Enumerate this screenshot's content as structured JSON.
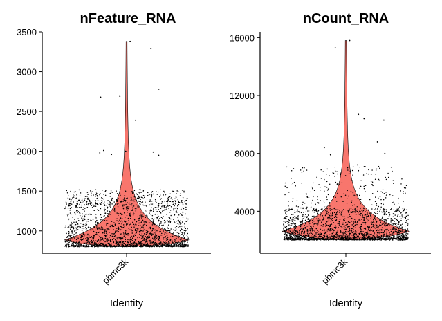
{
  "chart_data": [
    {
      "type": "violin",
      "title": "nFeature_RNA",
      "xlabel": "Identity",
      "ylabel": "",
      "categories": [
        "pbmc3k"
      ],
      "yticks": [
        1000,
        1500,
        2000,
        2500,
        3000,
        3500
      ],
      "ylim": [
        720,
        3500
      ],
      "fill_color": "#F8766D",
      "point_color": "#000000",
      "grid": false,
      "summary": {
        "min": 800,
        "max": 3380,
        "mode": 880,
        "median": 950
      },
      "outliers": [
        3380,
        3290,
        2780,
        2690,
        2680,
        2390,
        2010,
        2000,
        1990,
        1980,
        1960,
        1950
      ]
    },
    {
      "type": "violin",
      "title": "nCount_RNA",
      "xlabel": "Identity",
      "ylabel": "",
      "categories": [
        "pbmc3k"
      ],
      "yticks": [
        4000,
        8000,
        12000,
        16000
      ],
      "ylim": [
        1100,
        16400
      ],
      "fill_color": "#F8766D",
      "point_color": "#000000",
      "grid": false,
      "summary": {
        "min": 2000,
        "max": 15800,
        "mode": 2600,
        "median": 3100
      },
      "outliers": [
        15800,
        15300,
        10700,
        10400,
        10300,
        8800,
        8400,
        8000,
        7900,
        7200,
        7000,
        6800
      ]
    }
  ]
}
